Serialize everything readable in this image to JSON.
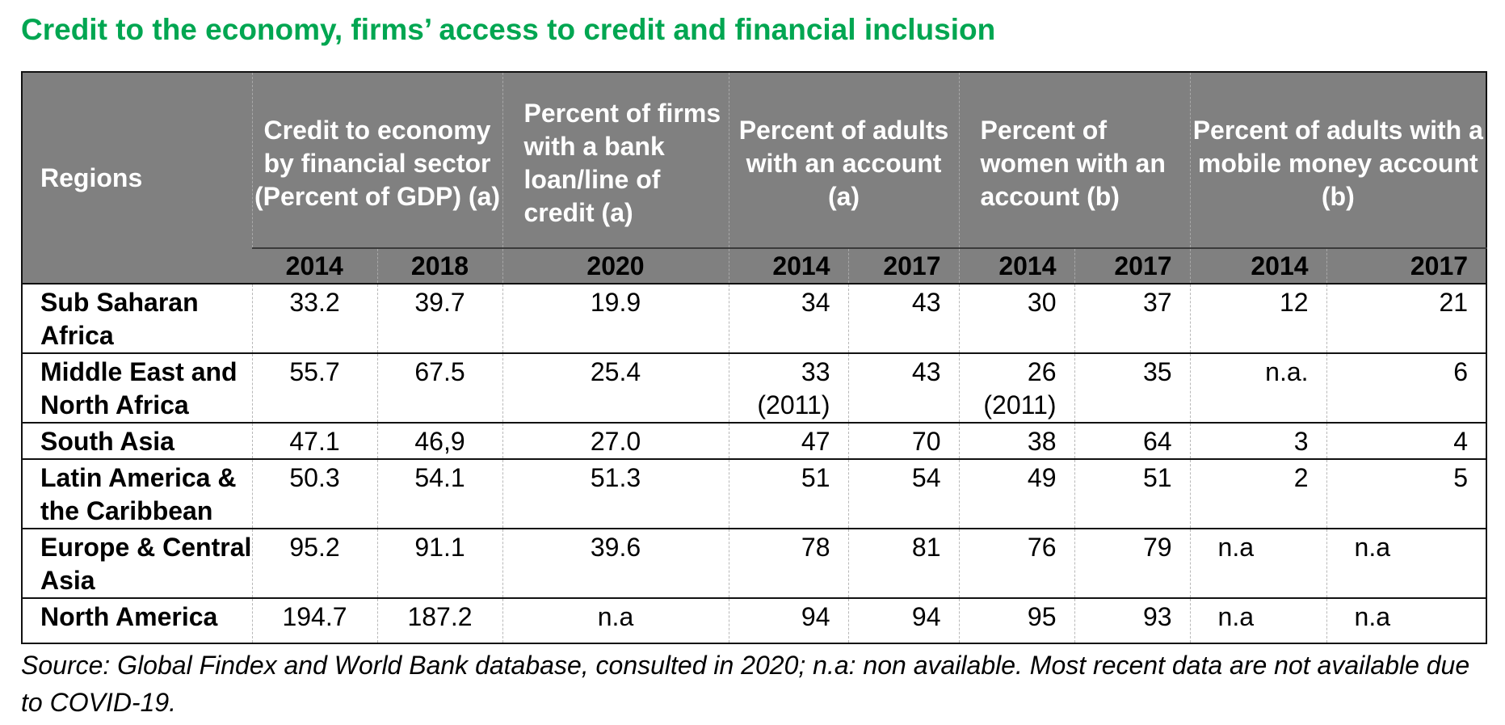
{
  "title": "Credit to the economy, firms’ access to credit and financial inclusion",
  "header": {
    "regions": "Regions",
    "groups": [
      "Credit to economy by financial sector (Percent of GDP) (a)",
      "Percent of firms with a bank loan/line of credit (a)",
      "Percent of adults with an account (a)",
      "Percent of women with an account (b)",
      "Percent of adults with a mobile money account (b)"
    ],
    "years": [
      "2014",
      "2018",
      "2020",
      "2014",
      "2017",
      "2014",
      "2017",
      "2014",
      "2017"
    ]
  },
  "rows": [
    {
      "region": "Sub Saharan Africa",
      "cells": [
        "33.2",
        "39.7",
        "19.9",
        "34",
        "43",
        "30",
        "37",
        "12",
        "21"
      ]
    },
    {
      "region": "Middle East and North Africa",
      "cells": [
        "55.7",
        "67.5",
        "25.4",
        "33\n(2011)",
        "43",
        "26\n(2011)",
        "35",
        "n.a.",
        "6"
      ]
    },
    {
      "region": "South Asia",
      "cells": [
        "47.1",
        "46,9",
        "27.0",
        "47",
        "70",
        "38",
        "64",
        "3",
        "4"
      ]
    },
    {
      "region": "Latin America & the Caribbean",
      "cells": [
        "50.3",
        "54.1",
        "51.3",
        "51",
        "54",
        "49",
        "51",
        "2",
        "5"
      ]
    },
    {
      "region": "Europe & Central Asia",
      "cells": [
        "95.2",
        "91.1",
        "39.6",
        "78",
        "81",
        "76",
        "79",
        "n.a",
        "n.a"
      ]
    },
    {
      "region": "North America",
      "cells": [
        "194.7",
        "187.2",
        "n.a",
        "94",
        "94",
        "95",
        "93",
        "n.a",
        "n.a"
      ]
    }
  ],
  "source": "Source: Global Findex and World Bank database, consulted in  2020; n.a: non available. Most recent data are not available due to COVID-19."
}
